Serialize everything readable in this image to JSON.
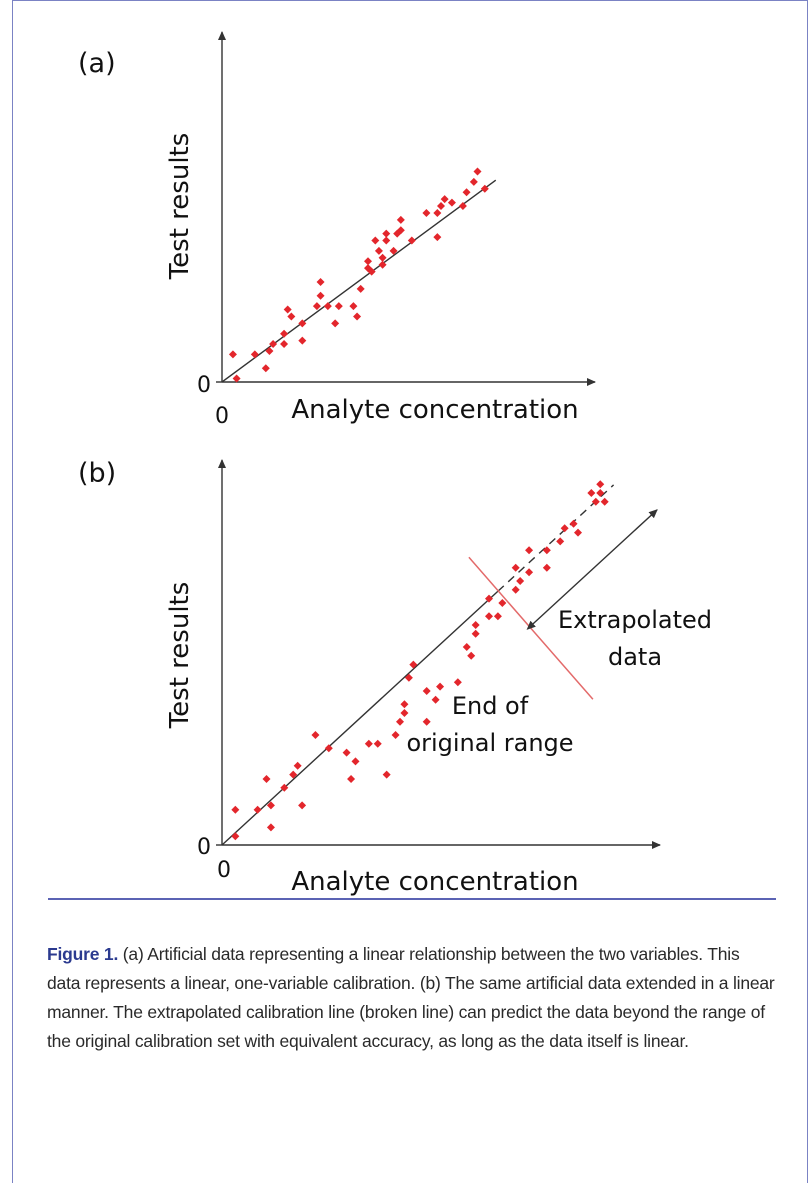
{
  "colors": {
    "points": "#e3262c",
    "fit_line": "#333333",
    "range_marker": "#e36a6a",
    "frame": "#7b83c4",
    "caption_label": "#2b3a8f"
  },
  "chart_data": [
    {
      "type": "scatter",
      "panel_label": "(a)",
      "xlabel": "Analyte concentration",
      "ylabel": "Test results",
      "x_origin_label": "0",
      "y_origin_label": "0",
      "xlim": [
        0,
        100
      ],
      "ylim": [
        0,
        100
      ],
      "grid": false,
      "points": [
        [
          3,
          8
        ],
        [
          4,
          1
        ],
        [
          9,
          8
        ],
        [
          12,
          4
        ],
        [
          13,
          9
        ],
        [
          14,
          11
        ],
        [
          17,
          11
        ],
        [
          17,
          14
        ],
        [
          18,
          21
        ],
        [
          19,
          19
        ],
        [
          22,
          12
        ],
        [
          22,
          17
        ],
        [
          26,
          22
        ],
        [
          27,
          25
        ],
        [
          27,
          29
        ],
        [
          29,
          22
        ],
        [
          31,
          17
        ],
        [
          32,
          22
        ],
        [
          36,
          22
        ],
        [
          37,
          19
        ],
        [
          38,
          27
        ],
        [
          40,
          33
        ],
        [
          40,
          35
        ],
        [
          41,
          32
        ],
        [
          42,
          41
        ],
        [
          43,
          38
        ],
        [
          44,
          34
        ],
        [
          44,
          36
        ],
        [
          45,
          43
        ],
        [
          45,
          41
        ],
        [
          47,
          38
        ],
        [
          48,
          43
        ],
        [
          49,
          44
        ],
        [
          49,
          47
        ],
        [
          52,
          41
        ],
        [
          56,
          49
        ],
        [
          59,
          49
        ],
        [
          59,
          42
        ],
        [
          60,
          51
        ],
        [
          61,
          53
        ],
        [
          63,
          52
        ],
        [
          66,
          51
        ],
        [
          67,
          55
        ],
        [
          69,
          58
        ],
        [
          70,
          61
        ],
        [
          72,
          56
        ]
      ],
      "fit_line": {
        "slope": 0.78,
        "intercept": 0,
        "x_range": [
          0,
          75
        ],
        "style": "solid"
      }
    },
    {
      "type": "scatter",
      "panel_label": "(b)",
      "xlabel": "Analyte concentration",
      "ylabel": "Test results",
      "x_origin_label": "0",
      "y_origin_label": "0",
      "xlim": [
        0,
        100
      ],
      "ylim": [
        0,
        100
      ],
      "grid": false,
      "points": [
        [
          3,
          8
        ],
        [
          3,
          2
        ],
        [
          8,
          8
        ],
        [
          10,
          15
        ],
        [
          11,
          4
        ],
        [
          11,
          9
        ],
        [
          14,
          13
        ],
        [
          16,
          16
        ],
        [
          17,
          18
        ],
        [
          18,
          9
        ],
        [
          21,
          25
        ],
        [
          24,
          22
        ],
        [
          28,
          21
        ],
        [
          29,
          15
        ],
        [
          30,
          19
        ],
        [
          33,
          23
        ],
        [
          35,
          23
        ],
        [
          37,
          16
        ],
        [
          39,
          25
        ],
        [
          40,
          28
        ],
        [
          41,
          32
        ],
        [
          41,
          30
        ],
        [
          42,
          38
        ],
        [
          43,
          41
        ],
        [
          46,
          35
        ],
        [
          46,
          28
        ],
        [
          48,
          33
        ],
        [
          49,
          36
        ],
        [
          53,
          37
        ],
        [
          55,
          45
        ],
        [
          56,
          43
        ],
        [
          57,
          48
        ],
        [
          57,
          50
        ],
        [
          60,
          56
        ],
        [
          60,
          52
        ],
        [
          62,
          52
        ],
        [
          63,
          55
        ],
        [
          66,
          58
        ],
        [
          66,
          63
        ],
        [
          67,
          60
        ],
        [
          69,
          67
        ],
        [
          69,
          62
        ],
        [
          73,
          63
        ],
        [
          73,
          67
        ],
        [
          76,
          69
        ],
        [
          77,
          72
        ],
        [
          79,
          73
        ],
        [
          80,
          71
        ],
        [
          83,
          80
        ],
        [
          84,
          78
        ],
        [
          85,
          82
        ],
        [
          85,
          80
        ],
        [
          86,
          78
        ]
      ],
      "fit_line": {
        "slope": 0.93,
        "intercept": 0,
        "x_range": [
          0,
          62
        ],
        "style": "solid"
      },
      "extrapolated_line": {
        "slope": 0.93,
        "intercept": 0,
        "x_range": [
          62,
          88
        ],
        "style": "dashed"
      },
      "annotations": {
        "range_end_label": [
          "End of",
          "original range"
        ],
        "extrapolated_label": [
          "Extrapolated",
          "data"
        ]
      }
    }
  ],
  "caption": {
    "label": "Figure 1.",
    "text": " (a) Artificial data representing a linear relationship between the two variables. This data represents a linear, one-variable calibration. (b) The same artificial data extended in a linear manner. The extrapolated calibration line (broken line) can predict the data beyond the range of the original calibration set with equivalent accuracy, as long as the data itself is linear."
  }
}
